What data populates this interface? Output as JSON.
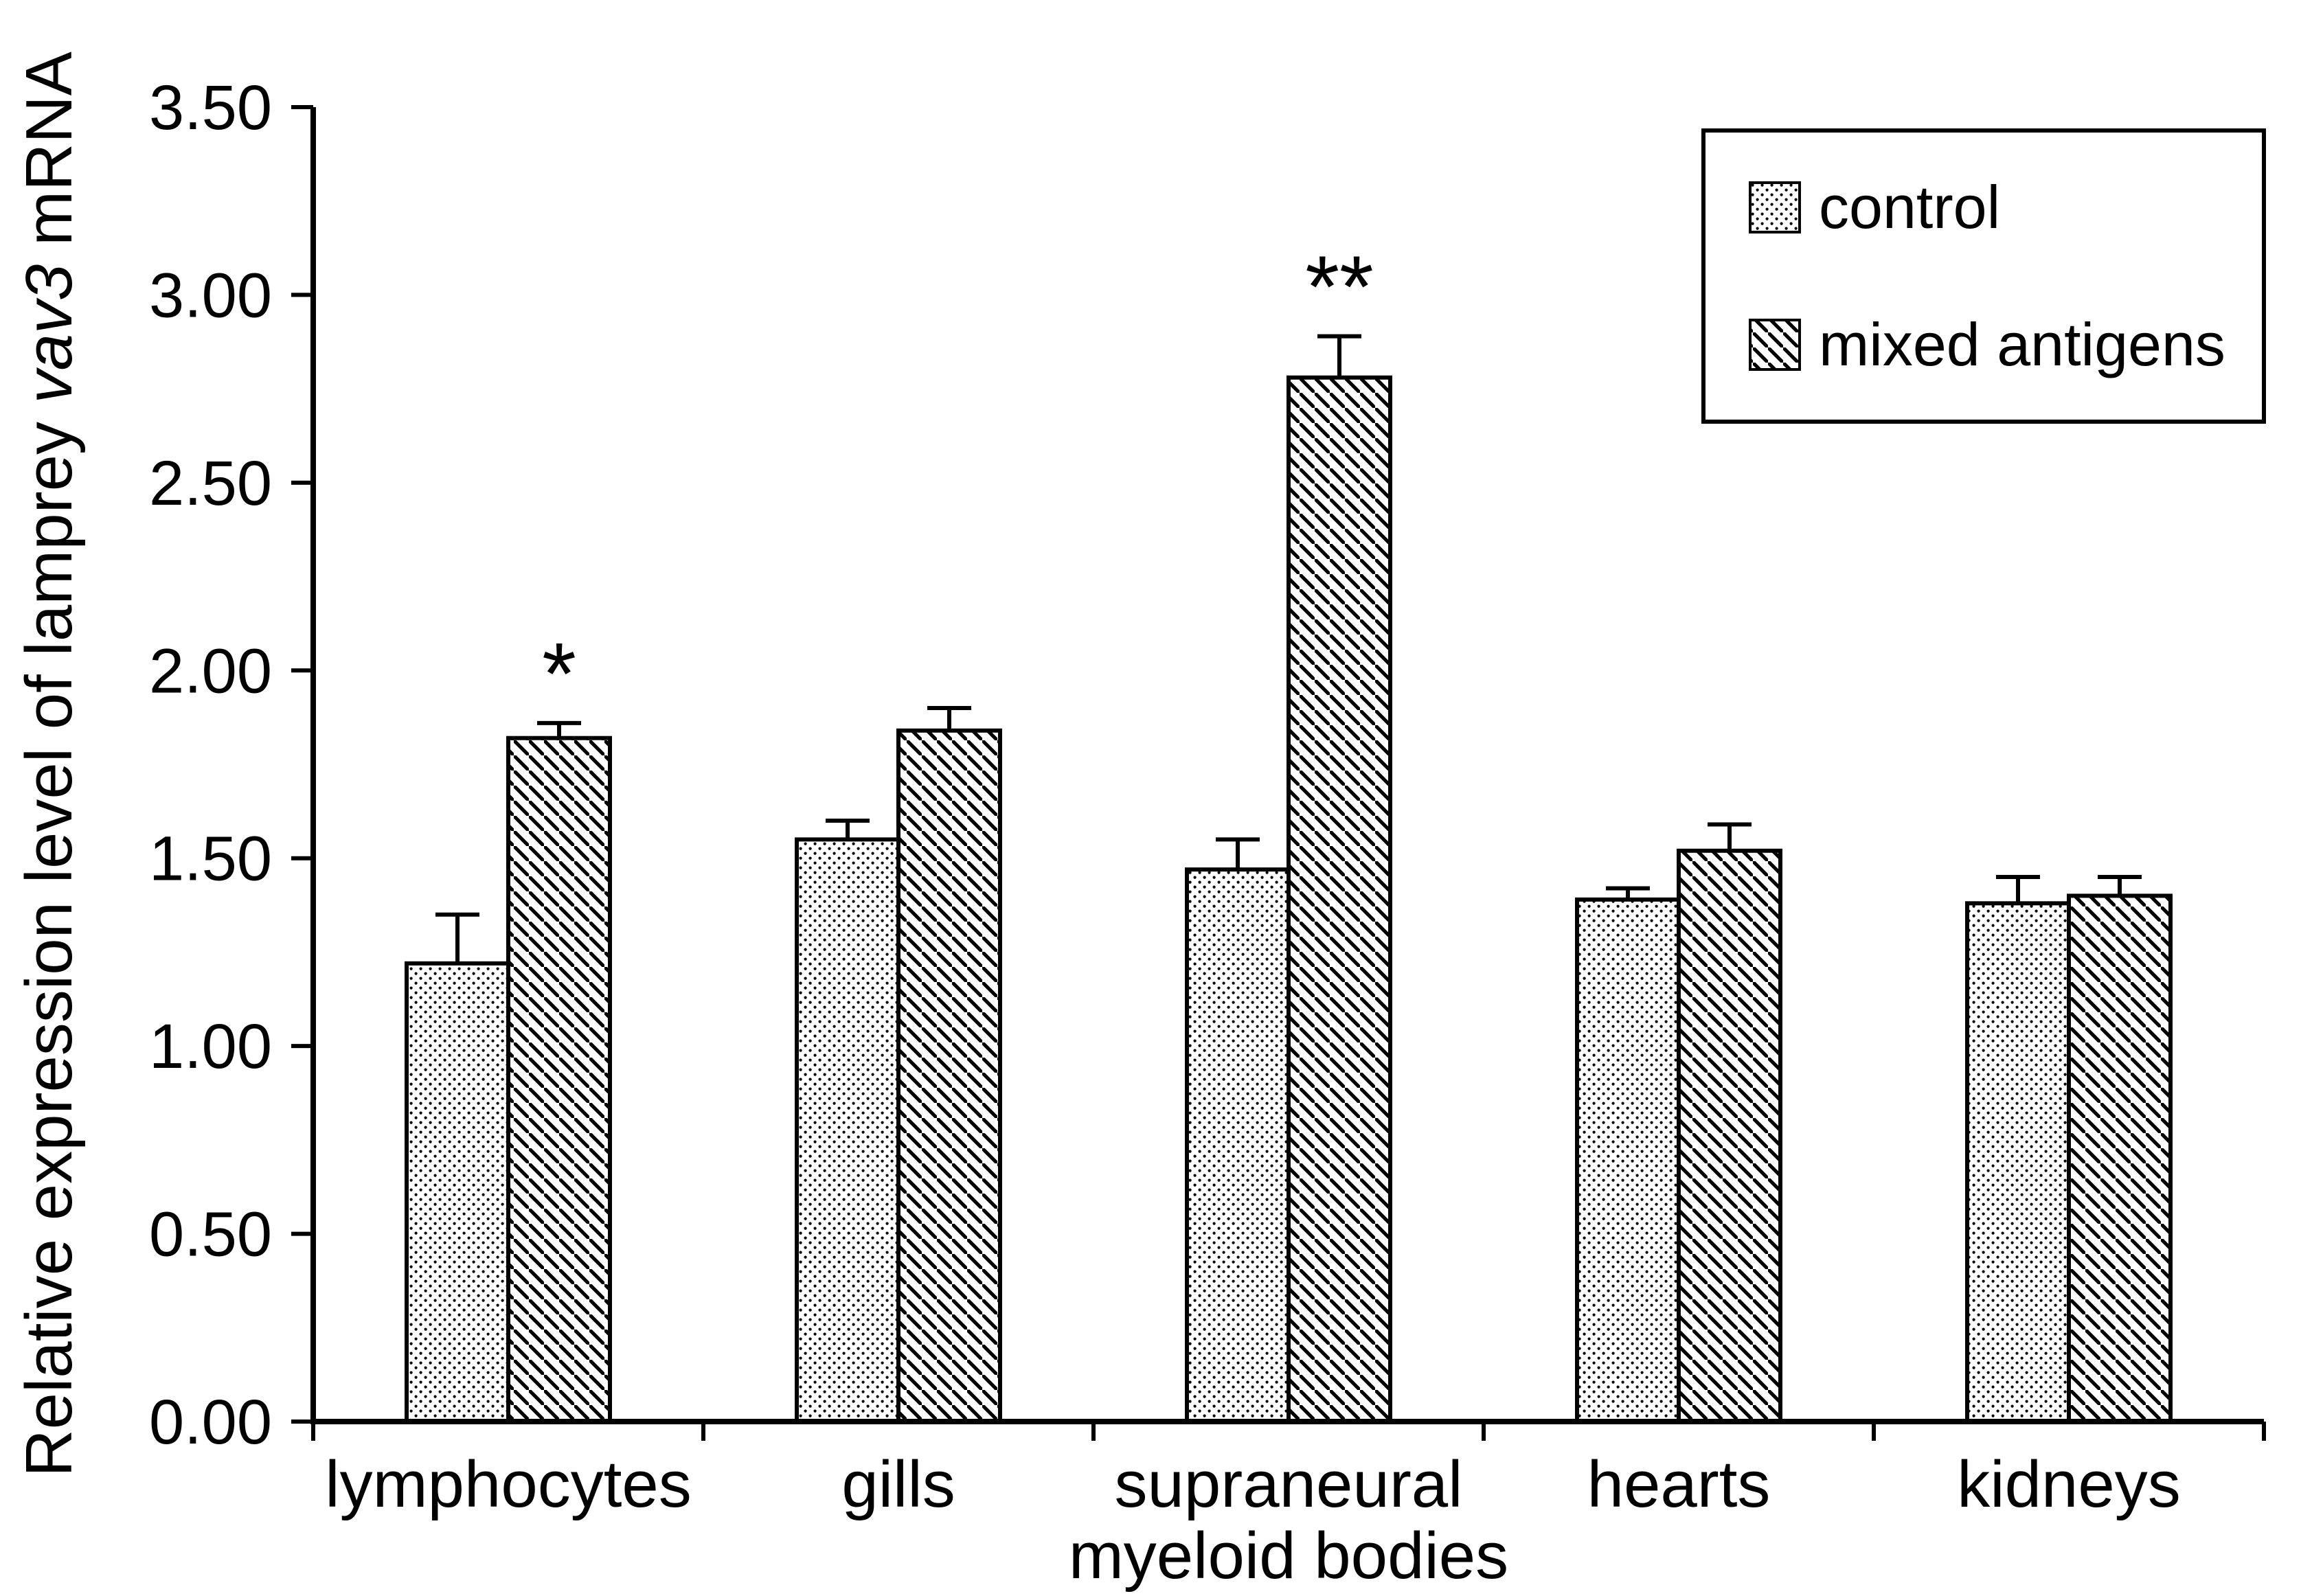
{
  "chart_data": {
    "type": "bar",
    "title": "",
    "categories": [
      "lymphocytes",
      "gills",
      "supraneural\nmyeloid bodies",
      "hearts",
      "kidneys"
    ],
    "series": [
      {
        "name": "control",
        "pattern": "dots",
        "values": [
          1.22,
          1.55,
          1.47,
          1.39,
          1.38
        ],
        "errors": [
          0.13,
          0.05,
          0.08,
          0.03,
          0.07
        ]
      },
      {
        "name": "mixed antigens",
        "pattern": "diagonal",
        "values": [
          1.82,
          1.84,
          2.78,
          1.52,
          1.4
        ],
        "errors": [
          0.04,
          0.06,
          0.11,
          0.07,
          0.05
        ]
      }
    ],
    "annotations": [
      {
        "category_index": 0,
        "series_index": 1,
        "text": "*"
      },
      {
        "category_index": 2,
        "series_index": 1,
        "text": "**"
      }
    ],
    "ylabel": "Relative expression level of lamprey vav3 mRNA",
    "ylabel_parts": [
      {
        "text": "Relative expression level of lamprey ",
        "italic": false
      },
      {
        "text": "vav3",
        "italic": true
      },
      {
        "text": " mRNA",
        "italic": false
      }
    ],
    "xlabel": "",
    "ylim": [
      0,
      3.5
    ],
    "ytick_step": 0.5,
    "ytick_labels": [
      "0.00",
      "0.50",
      "1.00",
      "1.50",
      "2.00",
      "2.50",
      "3.00",
      "3.50"
    ],
    "grid": false,
    "legend_position": "top-right",
    "bar_fill": "#ffffff",
    "bar_border": "#000000",
    "axis_color": "#000000",
    "text_color": "#000000"
  },
  "legend": {
    "items": [
      {
        "label": "control",
        "pattern": "dots"
      },
      {
        "label": "mixed antigens",
        "pattern": "diagonal"
      }
    ]
  }
}
